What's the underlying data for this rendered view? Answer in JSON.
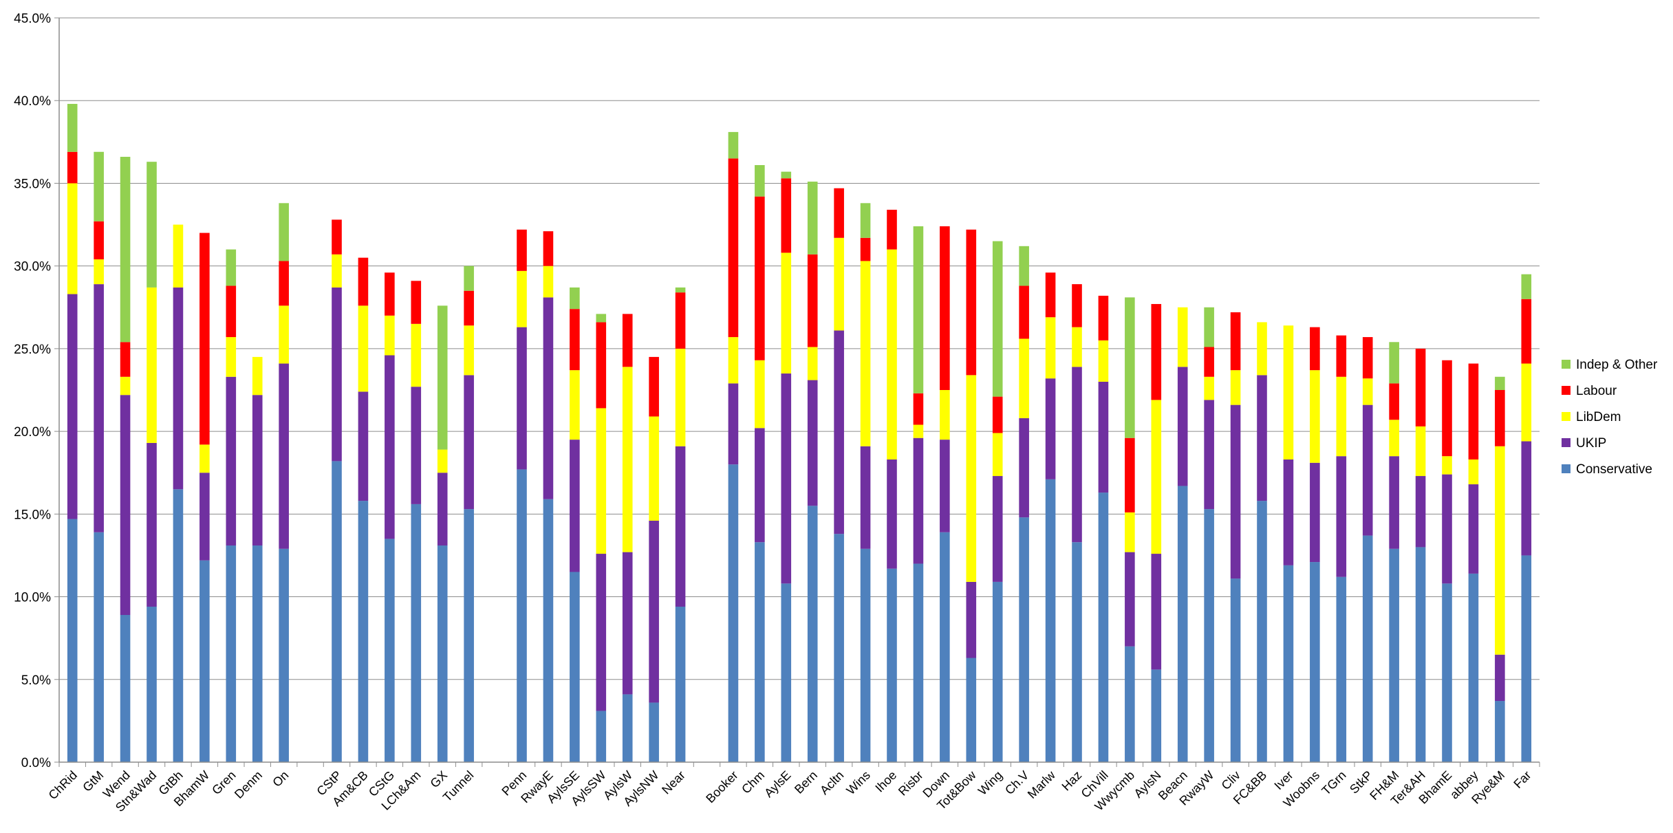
{
  "chart_data": {
    "type": "bar",
    "stacked": true,
    "ylim": [
      0,
      45
    ],
    "y_ticks": [
      "0.0%",
      "5.0%",
      "10.0%",
      "15.0%",
      "20.0%",
      "25.0%",
      "30.0%",
      "35.0%",
      "40.0%",
      "45.0%"
    ],
    "grid": true,
    "legend_position": "right",
    "colors": {
      "Conservative": "#4f81bd",
      "UKIP": "#7030a0",
      "LibDem": "#ffff00",
      "Labour": "#ff0000",
      "Indep & Other": "#92d050"
    },
    "legend": [
      "Indep & Other",
      "Labour",
      "LibDem",
      "UKIP",
      "Conservative"
    ],
    "groups": [
      [
        "ChRid",
        "GtM",
        "Wend",
        "Stn&Wad",
        "GtBh",
        "BhamW",
        "Gren",
        "Denm",
        "On"
      ],
      [
        "CStP",
        "Am&CB",
        "CStG",
        "LCh&Am",
        "GX",
        "Tunnel"
      ],
      [
        "Penn",
        "RwayE",
        "AylsSE",
        "AylsSW",
        "AylsW",
        "AylsNW",
        "Near"
      ],
      [
        "Booker",
        "Chm",
        "AylsE",
        "Bern",
        "Acltn",
        "Wins",
        "Ihoe",
        "Risbr",
        "Down",
        "Tot&Bow",
        "Wing",
        "Ch.V",
        "Marlw",
        "Haz",
        "ChVill",
        "Wwycmb",
        "AylsN",
        "Beacn",
        "RwayW",
        "Cliv",
        "FC&BB",
        "Iver",
        "Woobns",
        "TGrn",
        "StkP",
        "FH&M",
        "Ter&AH",
        "BhamE",
        "abbey",
        "Rye&M",
        "Far"
      ]
    ],
    "categories": [
      "ChRid",
      "GtM",
      "Wend",
      "Stn&Wad",
      "GtBh",
      "BhamW",
      "Gren",
      "Denm",
      "On",
      "CStP",
      "Am&CB",
      "CStG",
      "LCh&Am",
      "GX",
      "Tunnel",
      "Penn",
      "RwayE",
      "AylsSE",
      "AylsSW",
      "AylsW",
      "AylsNW",
      "Near",
      "Booker",
      "Chm",
      "AylsE",
      "Bern",
      "Acltn",
      "Wins",
      "Ihoe",
      "Risbr",
      "Down",
      "Tot&Bow",
      "Wing",
      "Ch.V",
      "Marlw",
      "Haz",
      "ChVill",
      "Wwycmb",
      "AylsN",
      "Beacn",
      "RwayW",
      "Cliv",
      "FC&BB",
      "Iver",
      "Woobns",
      "TGrn",
      "StkP",
      "FH&M",
      "Ter&AH",
      "BhamE",
      "abbey",
      "Rye&M",
      "Far"
    ],
    "series": [
      {
        "name": "Conservative",
        "values": [
          14.7,
          13.9,
          8.9,
          9.4,
          16.5,
          12.2,
          13.1,
          13.1,
          12.9,
          18.2,
          15.8,
          13.5,
          15.6,
          13.1,
          15.3,
          17.7,
          15.9,
          11.5,
          3.1,
          4.1,
          3.6,
          9.4,
          18.0,
          13.3,
          10.8,
          15.5,
          13.8,
          12.9,
          11.7,
          12.0,
          13.9,
          6.3,
          10.9,
          14.8,
          17.1,
          13.3,
          16.3,
          7.0,
          5.6,
          16.7,
          15.3,
          11.1,
          15.8,
          11.9,
          12.1,
          11.2,
          13.7,
          12.9,
          13.0,
          10.8,
          11.4,
          3.7,
          12.5
        ]
      },
      {
        "name": "UKIP",
        "values": [
          13.6,
          15.0,
          13.3,
          9.9,
          12.2,
          5.3,
          10.2,
          9.1,
          11.2,
          10.5,
          6.6,
          11.1,
          7.1,
          4.4,
          8.1,
          8.6,
          12.2,
          8.0,
          9.5,
          8.6,
          11.0,
          9.7,
          4.9,
          6.9,
          12.7,
          7.6,
          12.3,
          6.2,
          6.6,
          7.6,
          5.6,
          4.6,
          6.4,
          6.0,
          6.1,
          10.6,
          6.7,
          5.7,
          7.0,
          7.2,
          6.6,
          10.5,
          7.6,
          6.4,
          6.0,
          7.3,
          7.9,
          5.6,
          4.3,
          6.6,
          5.4,
          2.8,
          6.9
        ]
      },
      {
        "name": "LibDem",
        "values": [
          6.7,
          1.5,
          1.1,
          9.4,
          3.8,
          1.7,
          2.4,
          2.3,
          3.5,
          2.0,
          5.2,
          2.4,
          3.8,
          1.4,
          3.0,
          3.4,
          1.9,
          4.2,
          8.8,
          11.2,
          6.3,
          5.9,
          2.8,
          4.1,
          7.3,
          2.0,
          5.6,
          11.2,
          12.7,
          0.8,
          3.0,
          12.5,
          2.6,
          4.8,
          3.7,
          2.4,
          2.5,
          2.4,
          9.3,
          3.6,
          1.4,
          2.1,
          3.2,
          8.1,
          5.6,
          4.8,
          1.6,
          2.2,
          3.0,
          1.1,
          1.5,
          12.6,
          4.7
        ]
      },
      {
        "name": "Labour",
        "values": [
          1.9,
          2.3,
          2.1,
          0,
          0,
          12.8,
          3.1,
          0,
          2.7,
          2.1,
          2.9,
          2.6,
          2.6,
          0,
          2.1,
          2.5,
          2.1,
          3.7,
          5.2,
          3.2,
          3.6,
          3.4,
          10.8,
          9.9,
          4.5,
          5.6,
          3.0,
          1.4,
          2.4,
          1.9,
          9.9,
          8.8,
          2.2,
          3.2,
          2.7,
          2.6,
          2.7,
          4.5,
          5.8,
          0,
          1.8,
          3.5,
          0,
          0,
          2.6,
          2.5,
          2.5,
          2.2,
          4.7,
          5.8,
          5.8,
          3.4,
          3.9
        ]
      },
      {
        "name": "Indep & Other",
        "values": [
          2.9,
          4.2,
          11.2,
          7.6,
          0,
          0,
          2.2,
          0,
          3.5,
          0,
          0,
          0,
          0,
          8.7,
          1.5,
          0,
          0,
          1.3,
          0.5,
          0,
          0,
          0.3,
          1.6,
          1.9,
          0.4,
          4.4,
          0,
          2.1,
          0,
          10.1,
          0,
          0,
          9.4,
          2.4,
          0,
          0,
          0,
          8.5,
          0,
          0,
          2.4,
          0,
          0,
          0,
          0,
          0,
          0,
          2.5,
          0,
          0,
          0,
          0.8,
          1.5
        ]
      }
    ]
  }
}
